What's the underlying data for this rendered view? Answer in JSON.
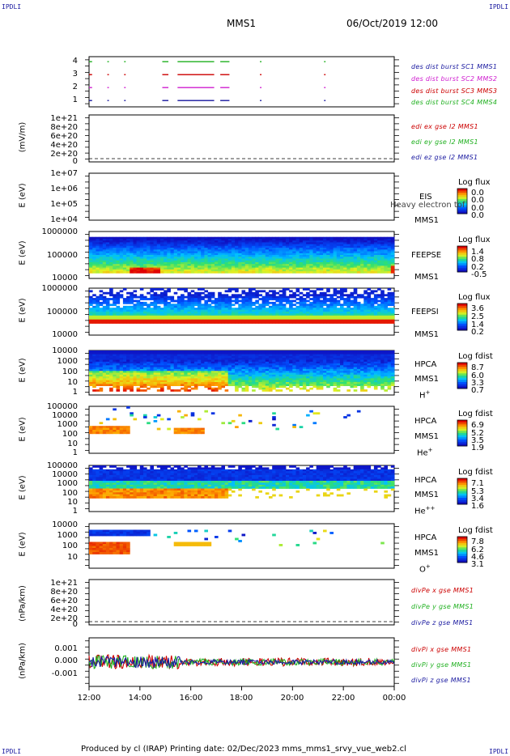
{
  "corners": {
    "label": "IPDLI"
  },
  "header": {
    "title": "MMS1",
    "date": "06/Oct/2019 12:00"
  },
  "footer": {
    "text": "Produced by cl (IRAP)   Printing date: 02/Dec/2023   mms_mms1_srvy_vue_web2.cl"
  },
  "xaxis": {
    "ticks": [
      "12:00",
      "14:00",
      "16:00",
      "18:00",
      "20:00",
      "22:00",
      "00:00"
    ]
  },
  "panels": {
    "p1": {
      "yticks": [
        "4",
        "3",
        "2",
        "1"
      ],
      "legend": [
        {
          "text": "des dist burst SC1 MMS1",
          "color": "#1a1aa0"
        },
        {
          "text": "des dist burst SC2 MMS2",
          "color": "#d020d0"
        },
        {
          "text": "des dist burst SC3 MMS3",
          "color": "#cc0000"
        },
        {
          "text": "des dist burst SC4 MMS4",
          "color": "#20b020"
        }
      ]
    },
    "p2": {
      "ylabel": "(mV/m)",
      "yticks": [
        "1e+21",
        "8e+20",
        "6e+20",
        "4e+20",
        "2e+20",
        "0"
      ],
      "legend": [
        {
          "text": "edi ex gse l2 MMS1",
          "color": "#cc0000"
        },
        {
          "text": "edi ey gse l2 MMS1",
          "color": "#20b020"
        },
        {
          "text": "edi ez gse l2 MMS1",
          "color": "#1a1aa0"
        }
      ]
    },
    "p3": {
      "ylabel": "E (eV)",
      "yticks": [
        "1e+07",
        "1e+06",
        "1e+05",
        "1e+04"
      ],
      "inst1": "EIS",
      "inst2": "MMS1",
      "overlay": "Heavy electron tof",
      "cbar_title": "Log flux",
      "cbar_vals": [
        "0.0",
        "0.0",
        "0.0",
        "0.0"
      ]
    },
    "p4": {
      "ylabel": "E (eV)",
      "yticks": [
        "1000000",
        "100000",
        "10000"
      ],
      "inst1": "FEEPSE",
      "inst2": "MMS1",
      "cbar_title": "Log flux",
      "cbar_vals": [
        "1.4",
        "0.8",
        "0.2",
        "-0.5"
      ]
    },
    "p5": {
      "ylabel": "E (eV)",
      "yticks": [
        "1000000",
        "100000",
        "10000"
      ],
      "inst1": "FEEPSI",
      "inst2": "MMS1",
      "cbar_title": "Log flux",
      "cbar_vals": [
        "3.6",
        "2.5",
        "1.4",
        "0.2"
      ]
    },
    "p6": {
      "ylabel": "E (eV)",
      "yticks": [
        "10000",
        "1000",
        "100",
        "10",
        "1"
      ],
      "inst1": "HPCA",
      "inst2": "MMS1",
      "species": "H",
      "species_sup": "+",
      "cbar_title": "Log fdist",
      "cbar_vals": [
        "8.7",
        "6.0",
        "3.3",
        "0.7"
      ]
    },
    "p7": {
      "ylabel": "E (eV)",
      "yticks": [
        "100000",
        "10000",
        "1000",
        "100",
        "10",
        "1"
      ],
      "inst1": "HPCA",
      "inst2": "MMS1",
      "species": "He",
      "species_sup": "+",
      "cbar_title": "Log fdist",
      "cbar_vals": [
        "6.9",
        "5.2",
        "3.5",
        "1.9"
      ]
    },
    "p8": {
      "ylabel": "E (eV)",
      "yticks": [
        "100000",
        "10000",
        "1000",
        "100",
        "10",
        "1"
      ],
      "inst1": "HPCA",
      "inst2": "MMS1",
      "species": "He",
      "species_sup": "++",
      "cbar_title": "Log fdist",
      "cbar_vals": [
        "7.1",
        "5.3",
        "3.4",
        "1.6"
      ]
    },
    "p9": {
      "ylabel": "E (eV)",
      "yticks": [
        "10000",
        "1000",
        "100",
        "10"
      ],
      "inst1": "HPCA",
      "inst2": "MMS1",
      "species": "O",
      "species_sup": "+",
      "cbar_title": "Log fdist",
      "cbar_vals": [
        "7.8",
        "6.2",
        "4.6",
        "3.1"
      ]
    },
    "p10": {
      "ylabel": "(nPa/km)",
      "yticks": [
        "1e+21",
        "8e+20",
        "6e+20",
        "4e+20",
        "2e+20",
        "0"
      ],
      "legend": [
        {
          "text": "divPe x gse MMS1",
          "color": "#cc0000"
        },
        {
          "text": "divPe y gse MMS1",
          "color": "#20b020"
        },
        {
          "text": "divPe z gse MMS1",
          "color": "#1a1aa0"
        }
      ]
    },
    "p11": {
      "ylabel": "(nPa/km)",
      "yticks": [
        "0.001",
        "0.000",
        "-0.001"
      ],
      "legend": [
        {
          "text": "divPi x gse MMS1",
          "color": "#cc0000"
        },
        {
          "text": "divPi y gse MMS1",
          "color": "#20b020"
        },
        {
          "text": "divPi z gse MMS1",
          "color": "#1a1aa0"
        }
      ]
    }
  },
  "chart_data": {
    "type": "heatmap",
    "x": [
      "12:00",
      "14:00",
      "16:00",
      "18:00",
      "20:00",
      "22:00",
      "00:00"
    ],
    "grid": false
  }
}
